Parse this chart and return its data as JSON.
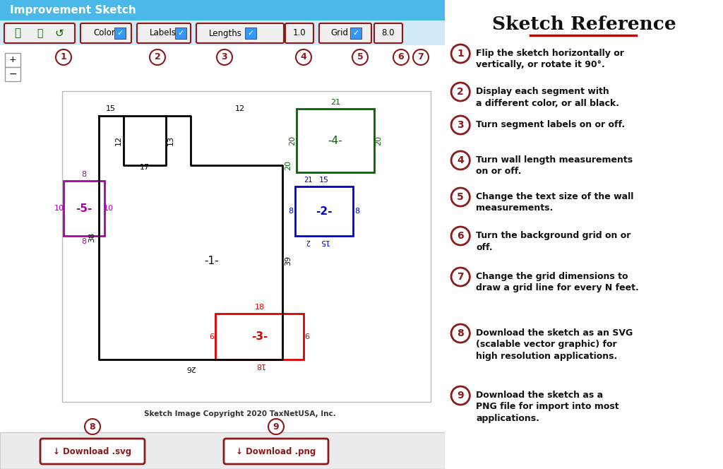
{
  "bg_color": "#ffffff",
  "header_bg": "#4ab8e8",
  "header_text": "Improvement Sketch",
  "header_text_color": "#ffffff",
  "dark_red": "#8b1a1a",
  "underline_color": "#cc0000",
  "reference_items": [
    {
      "num": "1",
      "text": "Flip the sketch horizontally or\nvertically, or rotate it 90°."
    },
    {
      "num": "2",
      "text": "Display each segment with\na different color, or all black."
    },
    {
      "num": "3",
      "text": "Turn segment labels on or off."
    },
    {
      "num": "4",
      "text": "Turn wall length measurements\non or off."
    },
    {
      "num": "5",
      "text": "Change the text size of the wall\nmeasurements."
    },
    {
      "num": "6",
      "text": "Turn the background grid on or\noff."
    },
    {
      "num": "7",
      "text": "Change the grid dimensions to\ndraw a grid line for every N feet."
    },
    {
      "num": "8",
      "text": "Download the sketch as an SVG\n(scalable vector graphic) for\nhigh resolution applications."
    },
    {
      "num": "9",
      "text": "Download the sketch as a\nPNG file for import into most\napplications."
    }
  ],
  "grid_color": "#cccccc",
  "bk": "#000000",
  "rd": "#dd0000",
  "bl": "#0000cc",
  "gn": "#006600",
  "mg": "#aa00aa",
  "footer_color": "#ebebeb",
  "toolbar_bg": "#e0e0e0"
}
